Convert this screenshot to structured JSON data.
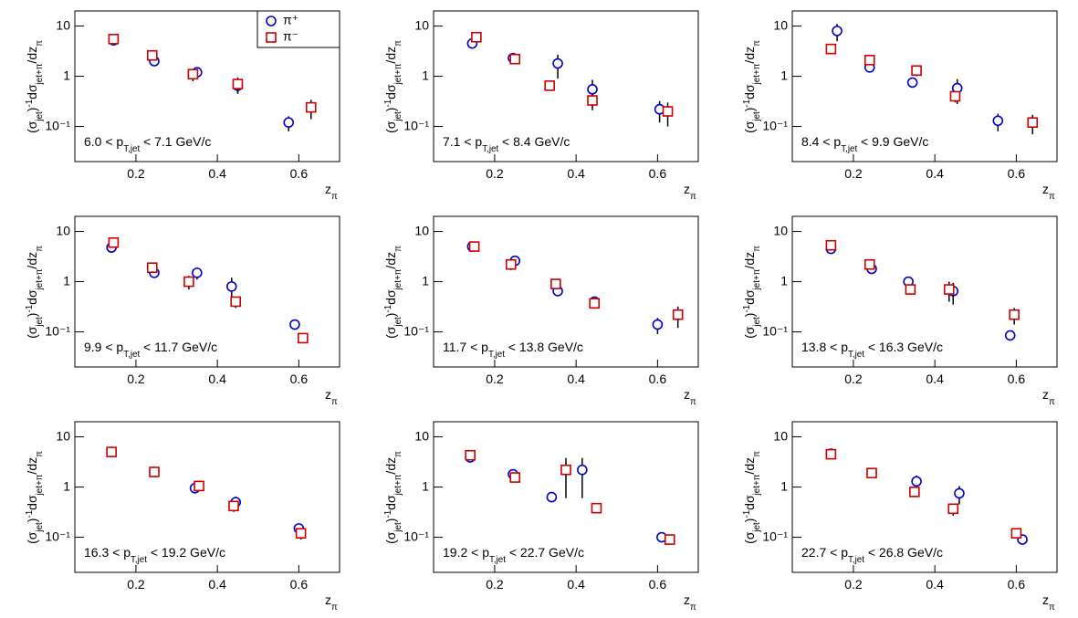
{
  "chart_data": [
    {
      "type": "scatter",
      "annotation": [
        "6.0 < p",
        "T,jet",
        " < 7.1 GeV/c"
      ],
      "y_label": [
        "(σ",
        "jet",
        ")",
        "-1",
        "dσ",
        "jet+π",
        "/dz",
        "π"
      ],
      "x_label": [
        "z",
        "π"
      ],
      "xlim": [
        0.05,
        0.7
      ],
      "xticks": [
        0.2,
        0.4,
        0.6
      ],
      "ylim": [
        0.02,
        20
      ],
      "ylog": true,
      "yticks": [
        {
          "value": 0.1,
          "label": "10⁻¹"
        },
        1,
        10
      ],
      "legend": "top-right",
      "series": [
        {
          "name": "π⁺",
          "color": "#0000cc",
          "marker": "circle",
          "x": [
            0.145,
            0.245,
            0.35,
            0.45,
            0.575
          ],
          "values": [
            5.2,
            2.0,
            1.2,
            0.65,
            0.12
          ],
          "errors": [
            0.6,
            0.3,
            0.2,
            0.2,
            0.04
          ]
        },
        {
          "name": "π⁻",
          "color": "#cc0000",
          "marker": "square",
          "x": [
            0.145,
            0.24,
            0.34,
            0.45,
            0.63
          ],
          "values": [
            5.5,
            2.6,
            1.1,
            0.7,
            0.24
          ],
          "errors": [
            0.6,
            0.3,
            0.3,
            0.25,
            0.1
          ]
        }
      ]
    },
    {
      "type": "scatter",
      "annotation": [
        "7.1 < p",
        "T,jet",
        " < 8.4 GeV/c"
      ],
      "y_label": [
        "(σ",
        "jet",
        ")",
        "-1",
        "dσ",
        "jet+π",
        "/dz",
        "π"
      ],
      "x_label": [
        "z",
        "π"
      ],
      "xlim": [
        0.05,
        0.7
      ],
      "xticks": [
        0.2,
        0.4,
        0.6
      ],
      "ylim": [
        0.02,
        20
      ],
      "ylog": true,
      "yticks": [
        {
          "value": 0.1,
          "label": "10⁻¹"
        },
        1,
        10
      ],
      "series": [
        {
          "color": "#0000cc",
          "marker": "circle",
          "x": [
            0.145,
            0.245,
            0.355,
            0.44,
            0.605
          ],
          "values": [
            4.5,
            2.3,
            1.8,
            0.55,
            0.22
          ],
          "errors": [
            0.4,
            0.4,
            0.9,
            0.3,
            0.1
          ]
        },
        {
          "color": "#cc0000",
          "marker": "square",
          "x": [
            0.155,
            0.25,
            0.335,
            0.44,
            0.625
          ],
          "values": [
            6.0,
            2.2,
            0.65,
            0.33,
            0.2
          ],
          "errors": [
            0.8,
            0.3,
            0.1,
            0.12,
            0.1
          ]
        }
      ]
    },
    {
      "type": "scatter",
      "annotation": [
        "8.4 < p",
        "T,jet",
        " < 9.9 GeV/c"
      ],
      "y_label": [
        "(σ",
        "jet",
        ")",
        "-1",
        "dσ",
        "jet+π",
        "/dz",
        "π"
      ],
      "x_label": [
        "z",
        "π"
      ],
      "xlim": [
        0.05,
        0.7
      ],
      "xticks": [
        0.2,
        0.4,
        0.6
      ],
      "ylim": [
        0.02,
        20
      ],
      "ylog": true,
      "yticks": [
        {
          "value": 0.1,
          "label": "10⁻¹"
        },
        1,
        10
      ],
      "series": [
        {
          "color": "#0000cc",
          "marker": "circle",
          "x": [
            0.16,
            0.24,
            0.345,
            0.455,
            0.555
          ],
          "values": [
            8.0,
            1.5,
            0.75,
            0.58,
            0.13
          ],
          "errors": [
            3,
            0.2,
            0.15,
            0.3,
            0.05
          ]
        },
        {
          "color": "#cc0000",
          "marker": "square",
          "x": [
            0.145,
            0.24,
            0.355,
            0.45,
            0.64
          ],
          "values": [
            3.5,
            2.1,
            1.3,
            0.4,
            0.12
          ],
          "errors": [
            0.3,
            0.4,
            0.3,
            0.1,
            0.05
          ]
        }
      ]
    },
    {
      "type": "scatter",
      "annotation": [
        "9.9 < p",
        "T,jet",
        " < 11.7 GeV/c"
      ],
      "y_label": [
        "(σ",
        "jet",
        ")",
        "-1",
        "dσ",
        "jet+π",
        "/dz",
        "π"
      ],
      "x_label": [
        "z",
        "π"
      ],
      "xlim": [
        0.05,
        0.7
      ],
      "xticks": [
        0.2,
        0.4,
        0.6
      ],
      "ylim": [
        0.02,
        20
      ],
      "ylog": true,
      "yticks": [
        {
          "value": 0.1,
          "label": "10⁻¹"
        },
        1,
        10
      ],
      "series": [
        {
          "color": "#0000cc",
          "marker": "circle",
          "x": [
            0.14,
            0.245,
            0.35,
            0.435,
            0.59
          ],
          "values": [
            4.8,
            1.5,
            1.5,
            0.8,
            0.14
          ],
          "errors": [
            0.5,
            0.2,
            0.4,
            0.4,
            0.03
          ]
        },
        {
          "color": "#cc0000",
          "marker": "square",
          "x": [
            0.145,
            0.24,
            0.33,
            0.445,
            0.61
          ],
          "values": [
            6.0,
            1.9,
            1.0,
            0.4,
            0.075
          ],
          "errors": [
            0.5,
            0.3,
            0.3,
            0.1,
            0.015
          ]
        }
      ]
    },
    {
      "type": "scatter",
      "annotation": [
        "11.7 < p",
        "T,jet",
        " < 13.8 GeV/c"
      ],
      "y_label": [
        "(σ",
        "jet",
        ")",
        "-1",
        "dσ",
        "jet+π",
        "/dz",
        "π"
      ],
      "x_label": [
        "z",
        "π"
      ],
      "xlim": [
        0.05,
        0.7
      ],
      "xticks": [
        0.2,
        0.4,
        0.6
      ],
      "ylim": [
        0.02,
        20
      ],
      "ylog": true,
      "yticks": [
        {
          "value": 0.1,
          "label": "10⁻¹"
        },
        1,
        10
      ],
      "series": [
        {
          "color": "#0000cc",
          "marker": "circle",
          "x": [
            0.145,
            0.25,
            0.355,
            0.445,
            0.6
          ],
          "values": [
            5.0,
            2.6,
            0.65,
            0.4,
            0.14
          ],
          "errors": [
            0.4,
            0.5,
            0.1,
            0.08,
            0.05
          ]
        },
        {
          "color": "#cc0000",
          "marker": "square",
          "x": [
            0.15,
            0.24,
            0.35,
            0.445,
            0.65
          ],
          "values": [
            5.0,
            2.2,
            0.9,
            0.37,
            0.22
          ],
          "errors": [
            0.4,
            0.5,
            0.2,
            0.06,
            0.1
          ]
        }
      ]
    },
    {
      "type": "scatter",
      "annotation": [
        "13.8 < p",
        "T,jet",
        " < 16.3 GeV/c"
      ],
      "y_label": [
        "(σ",
        "jet",
        ")",
        "-1",
        "dσ",
        "jet+π",
        "/dz",
        "π"
      ],
      "x_label": [
        "z",
        "π"
      ],
      "xlim": [
        0.05,
        0.7
      ],
      "xticks": [
        0.2,
        0.4,
        0.6
      ],
      "ylim": [
        0.02,
        20
      ],
      "ylog": true,
      "yticks": [
        {
          "value": 0.1,
          "label": "10⁻¹"
        },
        1,
        10
      ],
      "series": [
        {
          "color": "#0000cc",
          "marker": "circle",
          "x": [
            0.145,
            0.245,
            0.335,
            0.445,
            0.585
          ],
          "values": [
            4.5,
            1.8,
            1.0,
            0.65,
            0.085
          ],
          "errors": [
            0.5,
            0.2,
            0.1,
            0.3,
            0.01
          ]
        },
        {
          "color": "#cc0000",
          "marker": "square",
          "x": [
            0.145,
            0.24,
            0.34,
            0.435,
            0.595
          ],
          "values": [
            5.3,
            2.2,
            0.7,
            0.7,
            0.22
          ],
          "errors": [
            0.5,
            0.3,
            0.1,
            0.3,
            0.08
          ]
        }
      ]
    },
    {
      "type": "scatter",
      "annotation": [
        "16.3 < p",
        "T,jet",
        " < 19.2 GeV/c"
      ],
      "y_label": [
        "(σ",
        "jet",
        ")",
        "-1",
        "dσ",
        "jet+π",
        "/dz",
        "π"
      ],
      "x_label": [
        "z",
        "π"
      ],
      "xlim": [
        0.05,
        0.7
      ],
      "xticks": [
        0.2,
        0.4,
        0.6
      ],
      "ylim": [
        0.02,
        20
      ],
      "ylog": true,
      "yticks": [
        {
          "value": 0.1,
          "label": "10⁻¹"
        },
        1,
        10
      ],
      "series": [
        {
          "color": "#0000cc",
          "marker": "circle",
          "x": [
            0.14,
            0.245,
            0.345,
            0.445,
            0.6
          ],
          "values": [
            5.0,
            2.0,
            0.95,
            0.5,
            0.15
          ],
          "errors": [
            0.5,
            0.3,
            0.1,
            0.15,
            0.03
          ]
        },
        {
          "color": "#cc0000",
          "marker": "square",
          "x": [
            0.14,
            0.245,
            0.355,
            0.44,
            0.605
          ],
          "values": [
            5.0,
            2.0,
            1.05,
            0.42,
            0.12
          ],
          "errors": [
            0.5,
            0.3,
            0.1,
            0.1,
            0.03
          ]
        }
      ]
    },
    {
      "type": "scatter",
      "annotation": [
        "19.2 < p",
        "T,jet",
        " < 22.7 GeV/c"
      ],
      "y_label": [
        "(σ",
        "jet",
        ")",
        "-1",
        "dσ",
        "jet+π",
        "/dz",
        "π"
      ],
      "x_label": [
        "z",
        "π"
      ],
      "xlim": [
        0.05,
        0.7
      ],
      "xticks": [
        0.2,
        0.4,
        0.6
      ],
      "ylim": [
        0.02,
        20
      ],
      "ylog": true,
      "yticks": [
        {
          "value": 0.1,
          "label": "10⁻¹"
        },
        1,
        10
      ],
      "series": [
        {
          "color": "#0000cc",
          "marker": "circle",
          "x": [
            0.14,
            0.245,
            0.34,
            0.415,
            0.61
          ],
          "values": [
            3.9,
            1.8,
            0.63,
            2.2,
            0.1
          ],
          "errors": [
            0.4,
            0.2,
            0.05,
            1.6,
            0.01
          ]
        },
        {
          "color": "#cc0000",
          "marker": "square",
          "x": [
            0.14,
            0.25,
            0.375,
            0.45,
            0.63
          ],
          "values": [
            4.3,
            1.55,
            2.2,
            0.38,
            0.09
          ],
          "errors": [
            0.5,
            0.2,
            1.6,
            0.06,
            0.01
          ]
        }
      ]
    },
    {
      "type": "scatter",
      "annotation": [
        "22.7 < p",
        "T,jet",
        " < 26.8 GeV/c"
      ],
      "y_label": [
        "(σ",
        "jet",
        ")",
        "-1",
        "dσ",
        "jet+π",
        "/dz",
        "π"
      ],
      "x_label": [
        "z",
        "π"
      ],
      "xlim": [
        0.05,
        0.7
      ],
      "xticks": [
        0.2,
        0.4,
        0.6
      ],
      "ylim": [
        0.02,
        20
      ],
      "ylog": true,
      "yticks": [
        {
          "value": 0.1,
          "label": "10⁻¹"
        },
        1,
        10
      ],
      "series": [
        {
          "color": "#0000cc",
          "marker": "circle",
          "x": [
            0.145,
            0.245,
            0.355,
            0.46,
            0.615
          ],
          "values": [
            4.6,
            1.9,
            1.3,
            0.75,
            0.09
          ],
          "errors": [
            0.4,
            0.2,
            0.4,
            0.3,
            0.01
          ]
        },
        {
          "color": "#cc0000",
          "marker": "square",
          "x": [
            0.145,
            0.245,
            0.35,
            0.445,
            0.6
          ],
          "values": [
            4.5,
            1.9,
            0.8,
            0.37,
            0.12
          ],
          "errors": [
            0.5,
            0.2,
            0.15,
            0.1,
            0.02
          ]
        }
      ]
    }
  ]
}
